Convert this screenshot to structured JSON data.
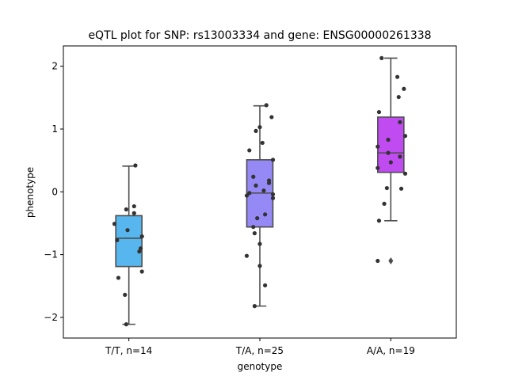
{
  "chart_data": {
    "type": "box",
    "title": "eQTL plot for SNP: rs13003334 and gene: ENSG00000261338",
    "xlabel": "genotype",
    "ylabel": "phenotype",
    "ylim": [
      -2.32,
      2.32
    ],
    "yticks": [
      -2,
      -1,
      0,
      1,
      2
    ],
    "ytick_labels": [
      "−2",
      "−1",
      "0",
      "1",
      "2"
    ],
    "grid": false,
    "categories": [
      "T/T, n=14",
      "T/A, n=25",
      "A/A, n=19"
    ],
    "colors": [
      "#57b6ee",
      "#9489f5",
      "#c04bf1"
    ],
    "boxes": [
      {
        "category": "T/T, n=14",
        "whisker_low": -2.11,
        "q1": -1.19,
        "median": -0.74,
        "q3": -0.38,
        "whisker_high": 0.41,
        "outliers": []
      },
      {
        "category": "T/A, n=25",
        "whisker_low": -1.82,
        "q1": -0.56,
        "median": -0.02,
        "q3": 0.51,
        "whisker_high": 1.37,
        "outliers": []
      },
      {
        "category": "A/A, n=19",
        "whisker_low": -0.46,
        "q1": 0.31,
        "median": 0.62,
        "q3": 1.19,
        "whisker_high": 2.13,
        "outliers": [
          -1.1
        ]
      }
    ],
    "points": [
      {
        "category": 0,
        "jitter": 0.05,
        "y": 0.42
      },
      {
        "category": 0,
        "jitter": -0.02,
        "y": -0.28
      },
      {
        "category": 0,
        "jitter": 0.04,
        "y": -0.34
      },
      {
        "category": 0,
        "jitter": 0.04,
        "y": -0.23
      },
      {
        "category": 0,
        "jitter": -0.11,
        "y": -0.51
      },
      {
        "category": 0,
        "jitter": -0.01,
        "y": -0.61
      },
      {
        "category": 0,
        "jitter": 0.1,
        "y": -0.71
      },
      {
        "category": 0,
        "jitter": -0.09,
        "y": -0.77
      },
      {
        "category": 0,
        "jitter": 0.09,
        "y": -0.9
      },
      {
        "category": 0,
        "jitter": 0.08,
        "y": -0.95
      },
      {
        "category": 0,
        "jitter": 0.1,
        "y": -1.27
      },
      {
        "category": 0,
        "jitter": -0.08,
        "y": -1.37
      },
      {
        "category": 0,
        "jitter": -0.03,
        "y": -1.64
      },
      {
        "category": 0,
        "jitter": -0.02,
        "y": -2.11
      },
      {
        "category": 1,
        "jitter": 0.05,
        "y": 1.38
      },
      {
        "category": 1,
        "jitter": 0.09,
        "y": 1.19
      },
      {
        "category": 1,
        "jitter": 0.0,
        "y": 1.03
      },
      {
        "category": 1,
        "jitter": -0.03,
        "y": 0.97
      },
      {
        "category": 1,
        "jitter": 0.02,
        "y": 0.78
      },
      {
        "category": 1,
        "jitter": -0.08,
        "y": 0.66
      },
      {
        "category": 1,
        "jitter": 0.1,
        "y": 0.51
      },
      {
        "category": 1,
        "jitter": -0.05,
        "y": 0.24
      },
      {
        "category": 1,
        "jitter": 0.07,
        "y": 0.18
      },
      {
        "category": 1,
        "jitter": 0.07,
        "y": 0.14
      },
      {
        "category": 1,
        "jitter": -0.03,
        "y": 0.1
      },
      {
        "category": 1,
        "jitter": 0.03,
        "y": 0.02
      },
      {
        "category": 1,
        "jitter": -0.08,
        "y": -0.02
      },
      {
        "category": 1,
        "jitter": -0.1,
        "y": -0.06
      },
      {
        "category": 1,
        "jitter": 0.1,
        "y": -0.1
      },
      {
        "category": 1,
        "jitter": 0.04,
        "y": -0.36
      },
      {
        "category": 1,
        "jitter": -0.02,
        "y": -0.42
      },
      {
        "category": 1,
        "jitter": -0.05,
        "y": -0.56
      },
      {
        "category": 1,
        "jitter": -0.04,
        "y": -0.66
      },
      {
        "category": 1,
        "jitter": 0.0,
        "y": -0.83
      },
      {
        "category": 1,
        "jitter": -0.1,
        "y": -1.02
      },
      {
        "category": 1,
        "jitter": 0.0,
        "y": -1.18
      },
      {
        "category": 1,
        "jitter": 0.04,
        "y": -1.49
      },
      {
        "category": 1,
        "jitter": -0.04,
        "y": -1.82
      },
      {
        "category": 1,
        "jitter": 0.1,
        "y": -0.04
      },
      {
        "category": 2,
        "jitter": -0.07,
        "y": 2.13
      },
      {
        "category": 2,
        "jitter": 0.05,
        "y": 1.83
      },
      {
        "category": 2,
        "jitter": 0.1,
        "y": 1.64
      },
      {
        "category": 2,
        "jitter": 0.06,
        "y": 1.51
      },
      {
        "category": 2,
        "jitter": -0.09,
        "y": 1.27
      },
      {
        "category": 2,
        "jitter": 0.07,
        "y": 1.11
      },
      {
        "category": 2,
        "jitter": 0.11,
        "y": 0.89
      },
      {
        "category": 2,
        "jitter": -0.02,
        "y": 0.83
      },
      {
        "category": 2,
        "jitter": -0.1,
        "y": 0.72
      },
      {
        "category": 2,
        "jitter": -0.02,
        "y": 0.62
      },
      {
        "category": 2,
        "jitter": 0.07,
        "y": 0.56
      },
      {
        "category": 2,
        "jitter": 0.0,
        "y": 0.47
      },
      {
        "category": 2,
        "jitter": -0.1,
        "y": 0.38
      },
      {
        "category": 2,
        "jitter": 0.11,
        "y": 0.29
      },
      {
        "category": 2,
        "jitter": -0.03,
        "y": 0.06
      },
      {
        "category": 2,
        "jitter": -0.05,
        "y": -0.19
      },
      {
        "category": 2,
        "jitter": -0.09,
        "y": -0.46
      },
      {
        "category": 2,
        "jitter": -0.1,
        "y": -1.1
      },
      {
        "category": 2,
        "jitter": 0.08,
        "y": 0.05
      }
    ]
  }
}
